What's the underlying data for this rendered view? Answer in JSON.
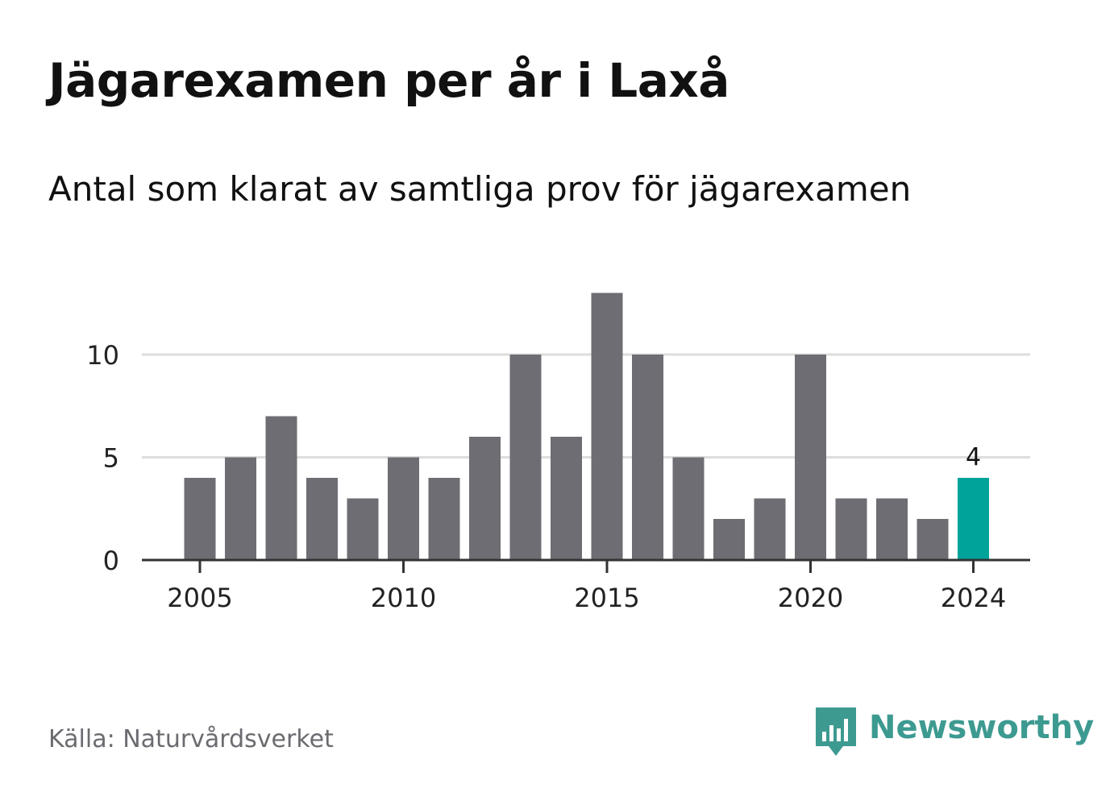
{
  "title": "Jägarexamen per år i Laxå",
  "subtitle": "Antal som klarat av samtliga prov för jägarexamen",
  "source": "Källa: Naturvårdsverket",
  "brand": "Newsworthy",
  "icon": "newsworthy-logo-icon",
  "colors": {
    "bar": "#6e6d73",
    "highlight": "#00a39a",
    "grid": "#dddddd",
    "axis": "#333333",
    "brand": "#3d9a91"
  },
  "chart_data": {
    "type": "bar",
    "categories": [
      "2005",
      "2006",
      "2007",
      "2008",
      "2009",
      "2010",
      "2011",
      "2012",
      "2013",
      "2014",
      "2015",
      "2016",
      "2017",
      "2018",
      "2019",
      "2020",
      "2021",
      "2022",
      "2023",
      "2024"
    ],
    "values": [
      4,
      5,
      7,
      4,
      3,
      5,
      4,
      6,
      10,
      6,
      13,
      10,
      5,
      2,
      3,
      10,
      3,
      3,
      2,
      4
    ],
    "highlight_index": 19,
    "highlight_label": "4",
    "x_ticks": [
      "2005",
      "2010",
      "2015",
      "2020",
      "2024"
    ],
    "y_ticks": [
      0,
      5,
      10
    ],
    "ylim": [
      0,
      13
    ],
    "grid": true,
    "xlabel": "",
    "ylabel": ""
  }
}
